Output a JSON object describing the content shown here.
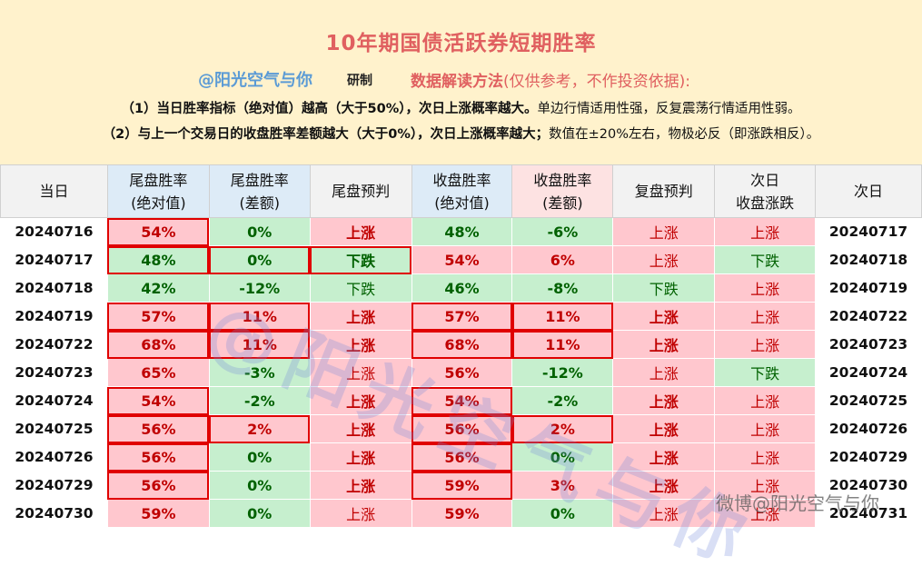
{
  "header": {
    "title": "10年期国债活跃券短期胜率",
    "brand": "@阳光空气与你",
    "brand_suffix": "研制",
    "method_label": "数据解读方法",
    "method_rest": "(仅供参考，不作投资依据):",
    "note1_bold": "（1）当日胜率指标（绝对值）越高（大于50%），次日上涨概率越大。",
    "note1_rest": "单边行情适用性强，反复震荡行情适用性弱。",
    "note2_bold": "（2）与上一个交易日的收盘胜率差额越大（大于0%），次日上涨概率越大；",
    "note2_rest": "数值在±20%左右，物极必反（即涨跌相反）。"
  },
  "columns": [
    {
      "l1": "当日",
      "l2": ""
    },
    {
      "l1": "尾盘胜率",
      "l2": "(绝对值)"
    },
    {
      "l1": "尾盘胜率",
      "l2": "(差额)"
    },
    {
      "l1": "尾盘预判",
      "l2": ""
    },
    {
      "l1": "收盘胜率",
      "l2": "(绝对值)"
    },
    {
      "l1": "收盘胜率",
      "l2": "(差额)"
    },
    {
      "l1": "复盘预判",
      "l2": ""
    },
    {
      "l1": "次日",
      "l2": "收盘涨跌"
    },
    {
      "l1": "次日",
      "l2": ""
    }
  ],
  "rows": [
    [
      "20240716",
      "54%",
      "0%",
      "上涨",
      "48%",
      "-6%",
      "上涨",
      "上涨",
      "20240717"
    ],
    [
      "20240717",
      "48%",
      "0%",
      "下跌",
      "54%",
      "6%",
      "上涨",
      "下跌",
      "20240718"
    ],
    [
      "20240718",
      "42%",
      "-12%",
      "下跌",
      "46%",
      "-8%",
      "下跌",
      "上涨",
      "20240719"
    ],
    [
      "20240719",
      "57%",
      "11%",
      "上涨",
      "57%",
      "11%",
      "上涨",
      "上涨",
      "20240722"
    ],
    [
      "20240722",
      "68%",
      "11%",
      "上涨",
      "68%",
      "11%",
      "上涨",
      "上涨",
      "20240723"
    ],
    [
      "20240723",
      "65%",
      "-3%",
      "上涨",
      "56%",
      "-12%",
      "上涨",
      "下跌",
      "20240724"
    ],
    [
      "20240724",
      "54%",
      "-2%",
      "上涨",
      "54%",
      "-2%",
      "上涨",
      "上涨",
      "20240725"
    ],
    [
      "20240725",
      "56%",
      "2%",
      "上涨",
      "56%",
      "2%",
      "上涨",
      "上涨",
      "20240726"
    ],
    [
      "20240726",
      "56%",
      "0%",
      "上涨",
      "56%",
      "0%",
      "上涨",
      "上涨",
      "20240729"
    ],
    [
      "20240729",
      "56%",
      "0%",
      "上涨",
      "59%",
      "3%",
      "上涨",
      "上涨",
      "20240730"
    ],
    [
      "20240730",
      "59%",
      "0%",
      "上涨",
      "59%",
      "0%",
      "上涨",
      "上涨",
      "20240731"
    ]
  ],
  "watermark": "@阳光空气与你",
  "weibo_watermark": "微博@阳光空气与你",
  "colors": {
    "up_bg": "#ffc7ce",
    "up_text": "#c00000",
    "down_bg": "#c6efce",
    "down_text": "#006100",
    "highlight": "#e00000"
  }
}
